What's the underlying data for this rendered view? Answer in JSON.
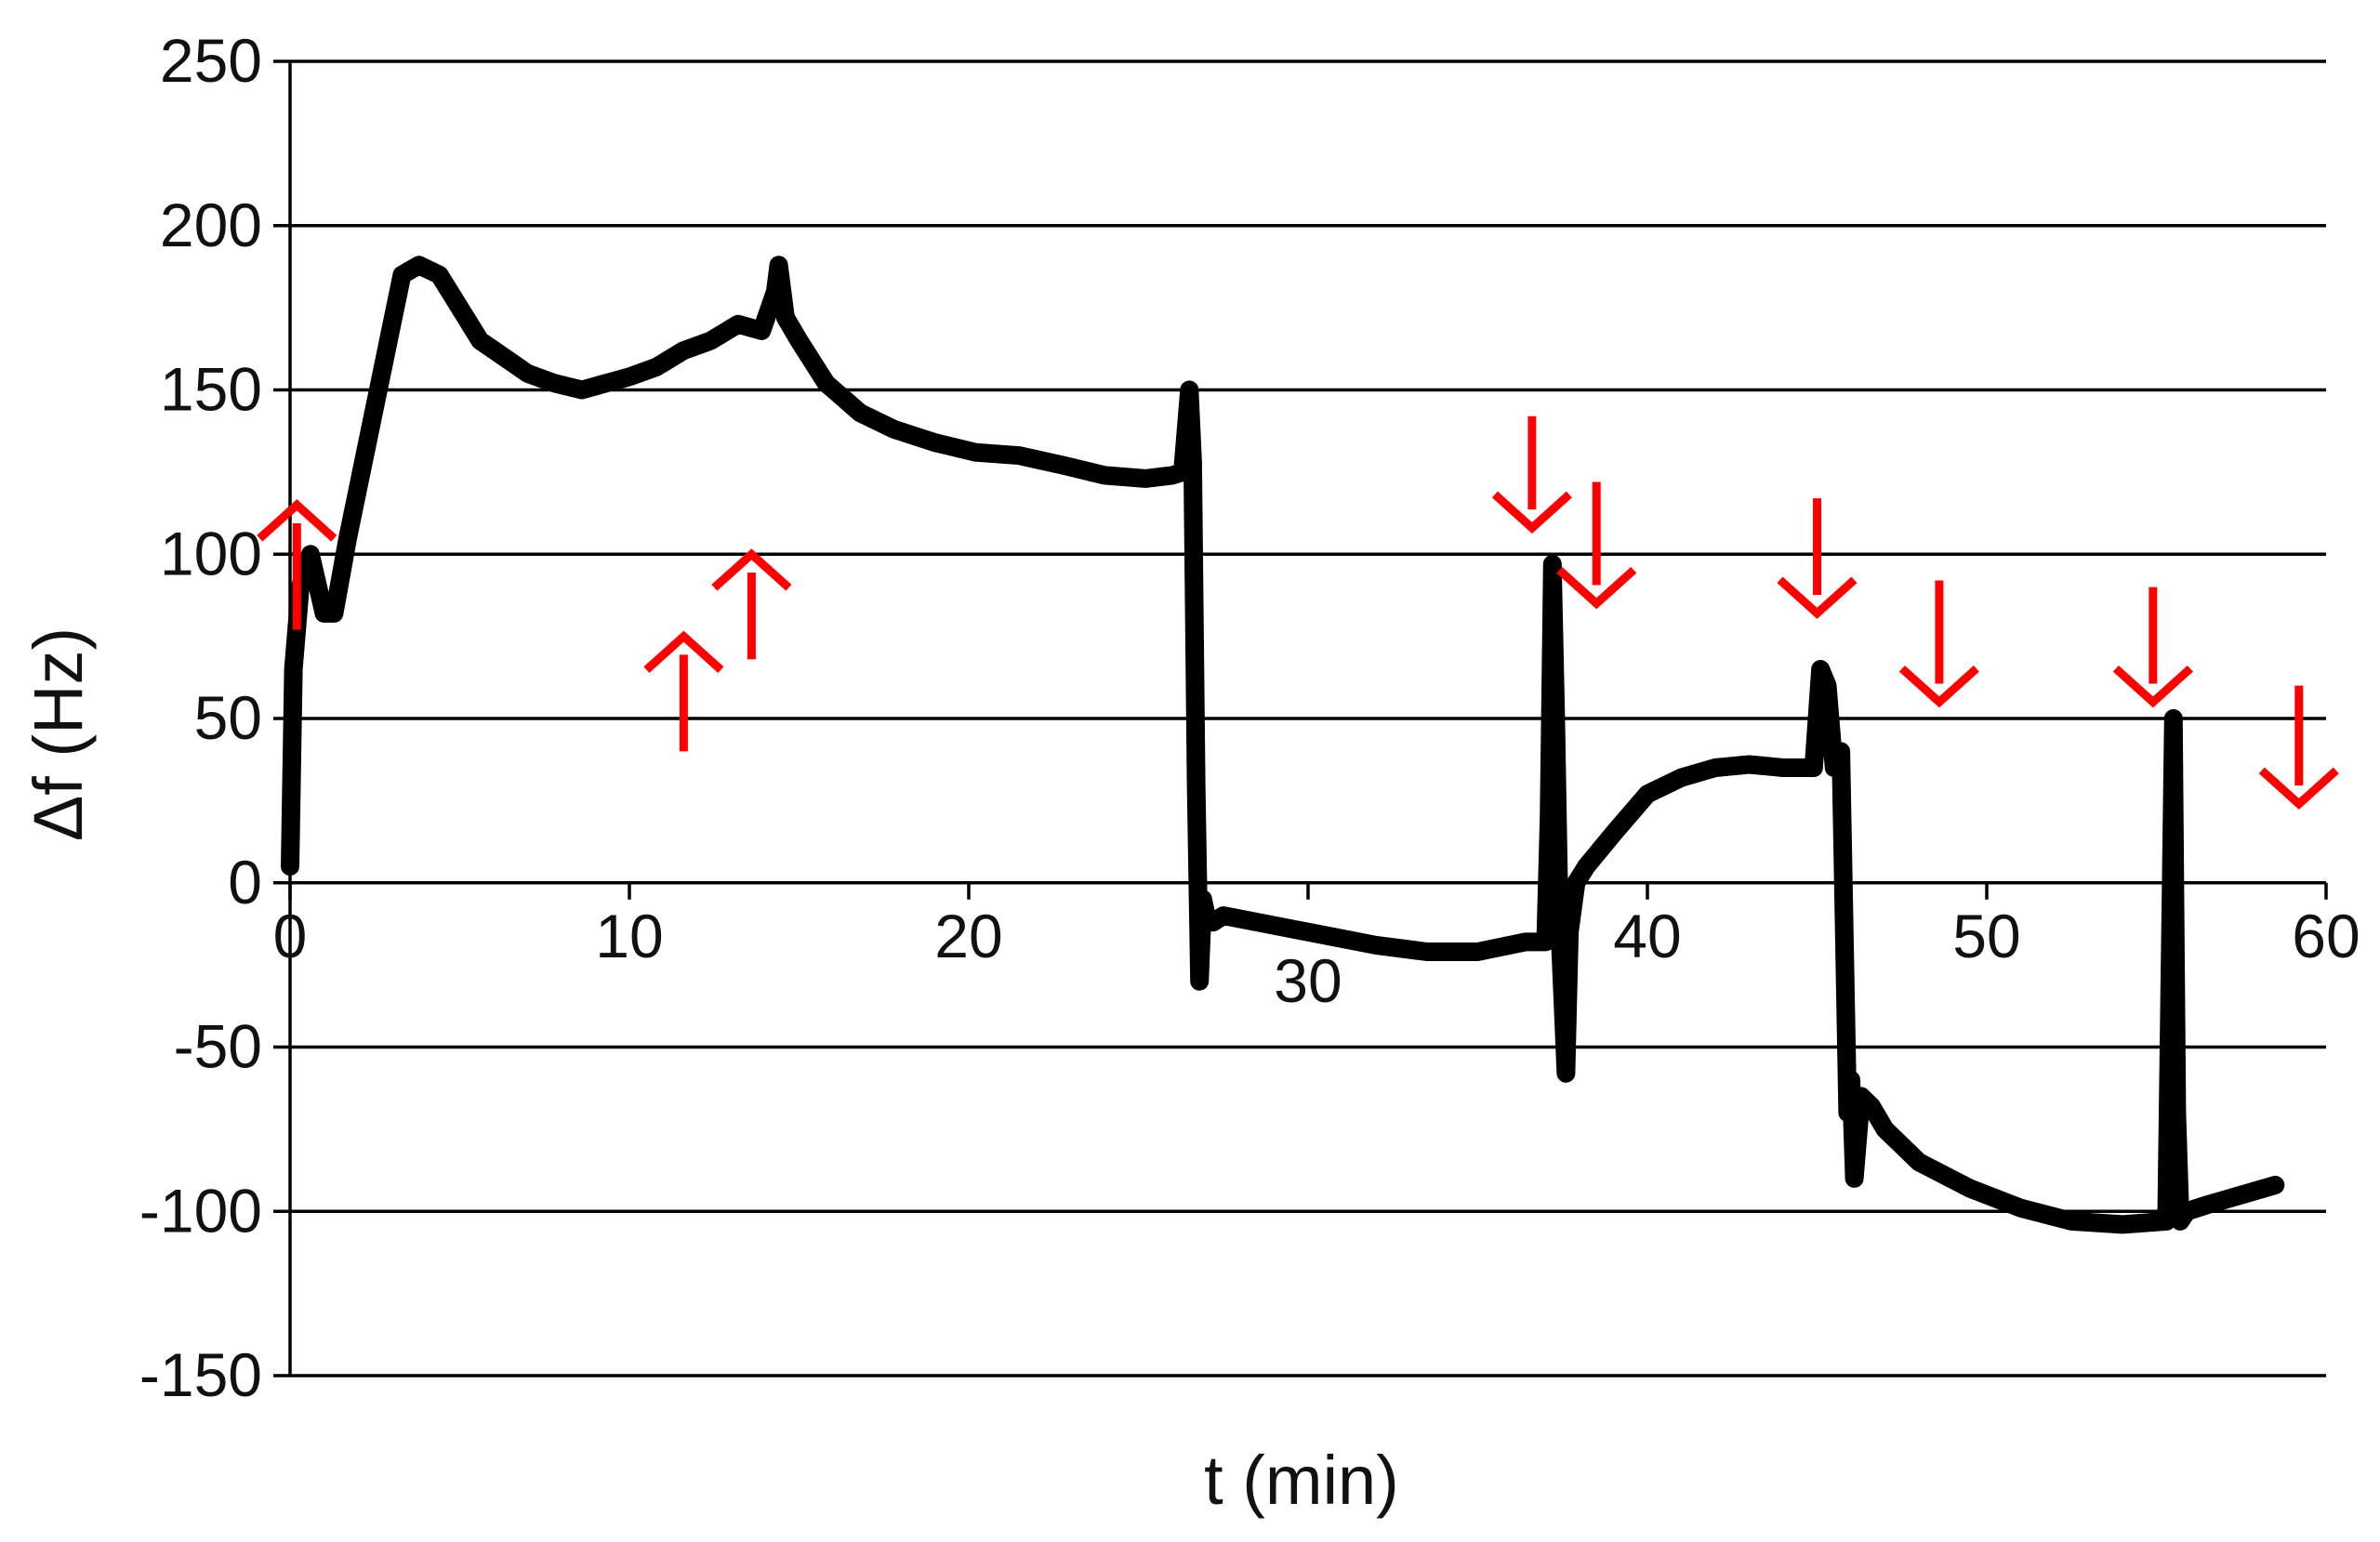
{
  "chart_data": {
    "type": "line",
    "xlabel": "t (min)",
    "ylabel": "Δf (Hz)",
    "xlim": [
      0,
      60
    ],
    "ylim": [
      -150,
      250
    ],
    "xticks": [
      {
        "value": 0,
        "label": "0"
      },
      {
        "value": 10,
        "label": "10"
      },
      {
        "value": 20,
        "label": "20"
      },
      {
        "value": 30,
        "label": "30"
      },
      {
        "value": 40,
        "label": "40"
      },
      {
        "value": 50,
        "label": "50"
      },
      {
        "value": 60,
        "label": "60"
      }
    ],
    "yticks": [
      {
        "value": 250,
        "label": "250"
      },
      {
        "value": 200,
        "label": "200"
      },
      {
        "value": 150,
        "label": "150"
      },
      {
        "value": 100,
        "label": "100"
      },
      {
        "value": 50,
        "label": "50"
      },
      {
        "value": 0,
        "label": "0"
      },
      {
        "value": -50,
        "label": "-50"
      },
      {
        "value": -100,
        "label": "-100"
      },
      {
        "value": -150,
        "label": "-150"
      }
    ],
    "grid": "horizontal",
    "series": [
      {
        "color": "#000000",
        "x": [
          0.0,
          0.1,
          0.3,
          0.6,
          1.0,
          1.3,
          1.7,
          2.2,
          2.8,
          3.3,
          3.8,
          4.4,
          5.0,
          5.6,
          6.3,
          7.0,
          7.8,
          8.6,
          9.3,
          10.0,
          10.8,
          11.6,
          12.4,
          13.2,
          13.9,
          14.3,
          14.4,
          14.6,
          15.0,
          15.8,
          16.8,
          17.8,
          19.0,
          20.2,
          21.5,
          22.8,
          24.0,
          25.2,
          26.0,
          26.3,
          26.5,
          26.6,
          26.7,
          26.8,
          26.9,
          27.0,
          27.2,
          27.5,
          29.0,
          30.5,
          32.0,
          33.5,
          35.0,
          36.4,
          37.0,
          37.1,
          37.2,
          37.3,
          37.4,
          37.6,
          37.7,
          37.9,
          38.2,
          39.0,
          40.0,
          41.0,
          42.0,
          43.0,
          44.0,
          44.9,
          45.1,
          45.3,
          45.5,
          45.7,
          45.9,
          46.0,
          46.1,
          46.3,
          46.6,
          47.0,
          48.0,
          49.5,
          51.0,
          52.5,
          54.0,
          55.3,
          55.5,
          55.6,
          55.7,
          55.9,
          56.5,
          57.5,
          58.5
        ],
        "y": [
          5,
          65,
          90,
          100,
          82,
          82,
          105,
          130,
          160,
          185,
          188,
          185,
          175,
          165,
          160,
          155,
          152,
          150,
          152,
          154,
          157,
          162,
          165,
          170,
          168,
          180,
          188,
          172,
          165,
          152,
          143,
          138,
          134,
          131,
          130,
          127,
          124,
          123,
          124,
          125,
          150,
          128,
          30,
          -30,
          -5,
          -10,
          -12,
          -10,
          -13,
          -16,
          -19,
          -21,
          -21,
          -18,
          -18,
          20,
          97,
          50,
          -10,
          -58,
          -15,
          0,
          5,
          15,
          27,
          32,
          35,
          36,
          35,
          35,
          65,
          60,
          35,
          40,
          -70,
          -60,
          -90,
          -65,
          -68,
          -75,
          -85,
          -93,
          -99,
          -103,
          -104,
          -103,
          50,
          -70,
          -103,
          -100,
          -98,
          -95,
          -92
        ]
      }
    ],
    "annotations": [
      {
        "type": "arrow-up",
        "color": "#ff0000",
        "x": 0.2,
        "y_from": 77,
        "y_to": 115
      },
      {
        "type": "arrow-up",
        "color": "#ff0000",
        "x": 11.6,
        "y_from": 40,
        "y_to": 75
      },
      {
        "type": "arrow-up",
        "color": "#ff0000",
        "x": 13.6,
        "y_from": 68,
        "y_to": 100
      },
      {
        "type": "arrow-down",
        "color": "#ff0000",
        "x": 36.6,
        "y_from": 142,
        "y_to": 108
      },
      {
        "type": "arrow-down",
        "color": "#ff0000",
        "x": 38.5,
        "y_from": 122,
        "y_to": 85
      },
      {
        "type": "arrow-down",
        "color": "#ff0000",
        "x": 45.0,
        "y_from": 117,
        "y_to": 82
      },
      {
        "type": "arrow-down",
        "color": "#ff0000",
        "x": 48.6,
        "y_from": 92,
        "y_to": 55
      },
      {
        "type": "arrow-down",
        "color": "#ff0000",
        "x": 54.9,
        "y_from": 90,
        "y_to": 55
      },
      {
        "type": "arrow-down",
        "color": "#ff0000",
        "x": 59.2,
        "y_from": 60,
        "y_to": 24
      }
    ]
  }
}
